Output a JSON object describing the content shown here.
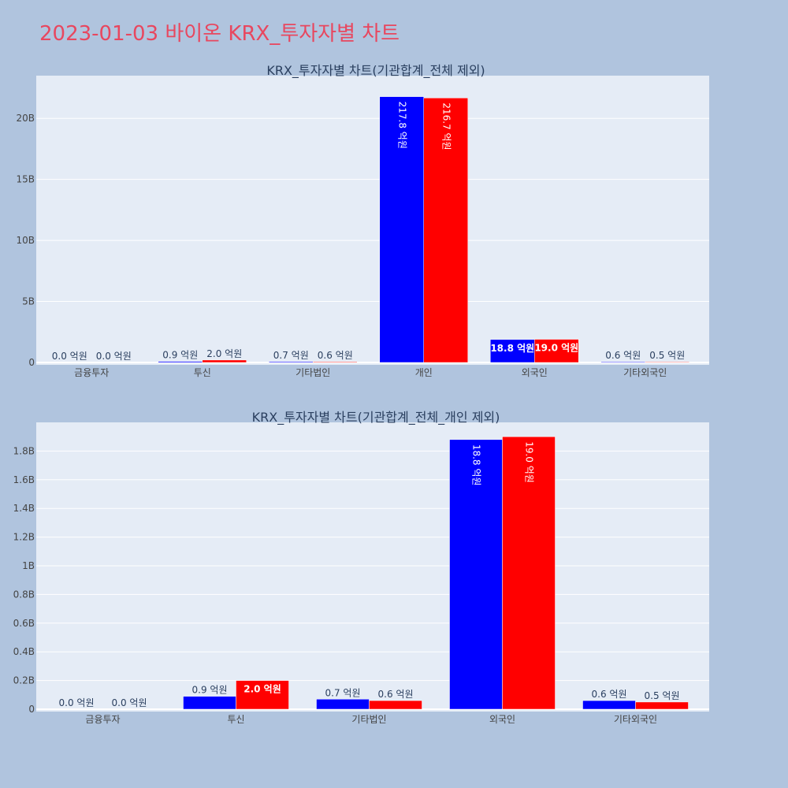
{
  "page_title": "2023-01-03 바이온 KRX_투자자별 차트",
  "colors": {
    "buy": "#0000ff",
    "sell": "#ff0000",
    "plot_bg": "#e5ecf6",
    "page_bg": "#b0c4de"
  },
  "chart_data": [
    {
      "type": "bar",
      "title": "KRX_투자자별 차트(기관합계_전체 제외)",
      "categories": [
        "금융투자",
        "투신",
        "기타법인",
        "개인",
        "외국인",
        "기타외국인"
      ],
      "series": [
        {
          "values": [
            0.0,
            0.09,
            0.07,
            21.78,
            1.88,
            0.06
          ],
          "labels": [
            "0.0 억원",
            "0.9 억원",
            "0.7 억원",
            "217.8 억원",
            "18.8 억원",
            "0.6 억원"
          ]
        },
        {
          "values": [
            0.0,
            0.2,
            0.06,
            21.67,
            1.9,
            0.05
          ],
          "labels": [
            "0.0 억원",
            "2.0 억원",
            "0.6 억원",
            "216.7 억원",
            "19.0 억원",
            "0.5 억원"
          ]
        }
      ],
      "yunit": "B",
      "ylim": [
        0,
        23.5
      ],
      "yticks": [
        0,
        5,
        10,
        15,
        20
      ],
      "ytick_labels": [
        "0",
        "5B",
        "10B",
        "15B",
        "20B"
      ],
      "grid": true
    },
    {
      "type": "bar",
      "title": "KRX_투자자별 차트(기관합계_전체_개인 제외)",
      "categories": [
        "금융투자",
        "투신",
        "기타법인",
        "외국인",
        "기타외국인"
      ],
      "series": [
        {
          "values": [
            0.0,
            0.09,
            0.07,
            1.88,
            0.06
          ],
          "labels": [
            "0.0 억원",
            "0.9 억원",
            "0.7 억원",
            "18.8 억원",
            "0.6 억원"
          ]
        },
        {
          "values": [
            0.0,
            0.2,
            0.06,
            1.9,
            0.05
          ],
          "labels": [
            "0.0 억원",
            "2.0 억원",
            "0.6 억원",
            "19.0 억원",
            "0.5 억원"
          ]
        }
      ],
      "yunit": "B",
      "ylim": [
        0,
        2.0
      ],
      "yticks": [
        0,
        0.2,
        0.4,
        0.6,
        0.8,
        1.0,
        1.2,
        1.4,
        1.6,
        1.8
      ],
      "ytick_labels": [
        "0",
        "0.2B",
        "0.4B",
        "0.6B",
        "0.8B",
        "1B",
        "1.2B",
        "1.4B",
        "1.6B",
        "1.8B"
      ],
      "grid": true
    }
  ]
}
